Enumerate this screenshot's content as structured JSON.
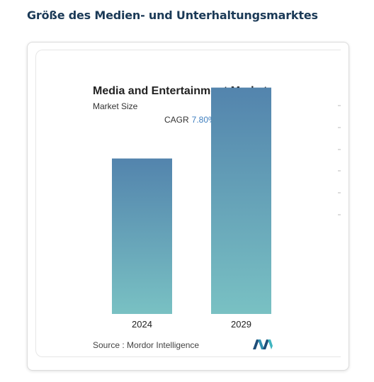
{
  "heading": "Größe des Medien- und Unterhaltungsmarktes",
  "chart_data": {
    "type": "bar",
    "title": "Media and Entertainment Market",
    "subtitle": "Market Size",
    "cagr_label": "CAGR",
    "cagr_value": "7.80%",
    "categories": [
      "2024",
      "2029"
    ],
    "values": [
      1.0,
      1.456
    ],
    "ylim": [
      0,
      1.6
    ],
    "grid": false,
    "legend": "none",
    "source_label": "Source :",
    "source_value": "Mordor Intelligence",
    "colors": {
      "bar_top": "#5384ad",
      "bar_bottom": "#79c1c3",
      "cagr": "#3f7fbf"
    }
  },
  "logo": {
    "icon": "mordor-intelligence-logo"
  }
}
